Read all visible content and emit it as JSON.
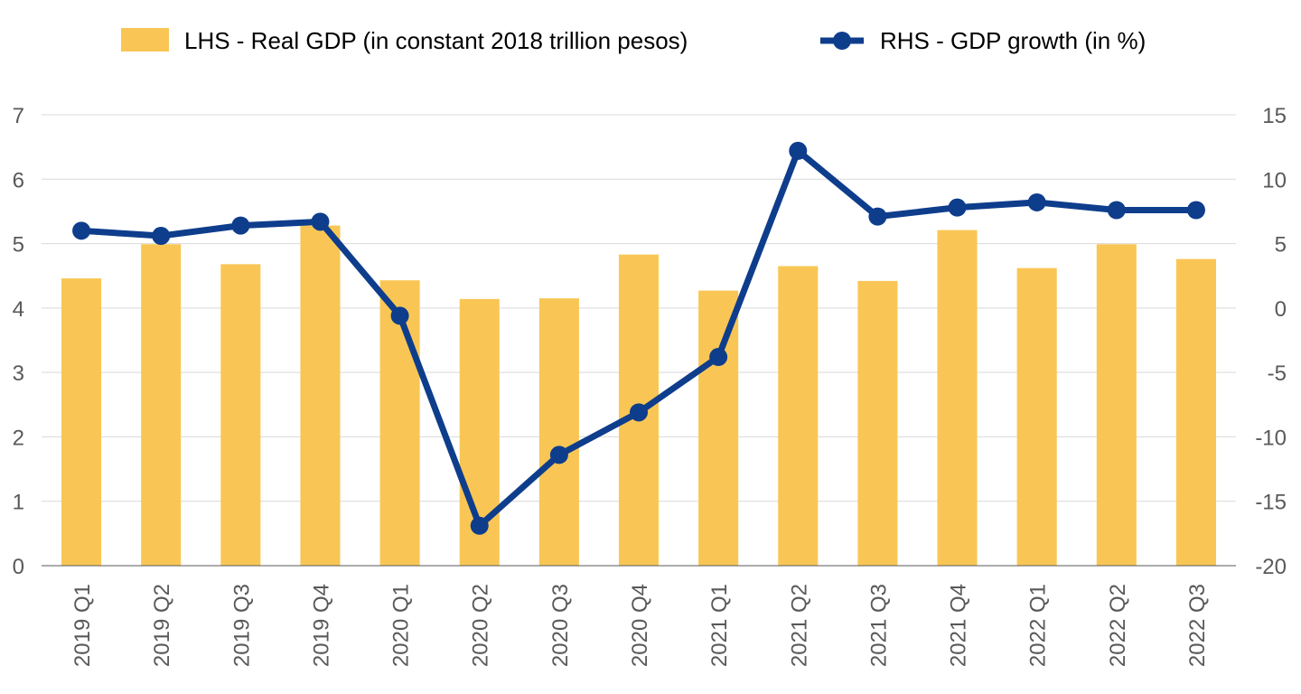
{
  "chart_data": {
    "type": "bar",
    "categories": [
      "2019 Q1",
      "2019 Q2",
      "2019 Q3",
      "2019 Q4",
      "2020 Q1",
      "2020 Q2",
      "2020 Q3",
      "2020 Q4",
      "2021 Q1",
      "2021 Q2",
      "2021 Q3",
      "2021 Q4",
      "2022 Q1",
      "2022 Q2",
      "2022 Q3"
    ],
    "series": [
      {
        "name": "LHS - Real GDP (in constant 2018 trillion pesos)",
        "type": "bar",
        "axis": "left",
        "color": "#F9C655",
        "values": [
          4.46,
          4.99,
          4.68,
          5.28,
          4.43,
          4.14,
          4.15,
          4.83,
          4.27,
          4.65,
          4.42,
          5.21,
          4.62,
          4.99,
          4.76
        ]
      },
      {
        "name": "RHS - GDP growth (in %)",
        "type": "line",
        "axis": "right",
        "color": "#0E3D8C",
        "values": [
          6.0,
          5.6,
          6.4,
          6.7,
          -0.6,
          -16.9,
          -11.4,
          -8.1,
          -3.8,
          12.2,
          7.1,
          7.8,
          8.2,
          7.6,
          7.6
        ]
      }
    ],
    "y_left": {
      "ylim": [
        0,
        7
      ],
      "ticks": [
        "0",
        "1",
        "2",
        "3",
        "4",
        "5",
        "6",
        "7"
      ]
    },
    "y_right": {
      "ylim": [
        -20,
        15
      ],
      "ticks": [
        "-20",
        "-15",
        "-10",
        "-5",
        "0",
        "5",
        "10",
        "15"
      ]
    },
    "legend_position": "top",
    "grid": true
  }
}
